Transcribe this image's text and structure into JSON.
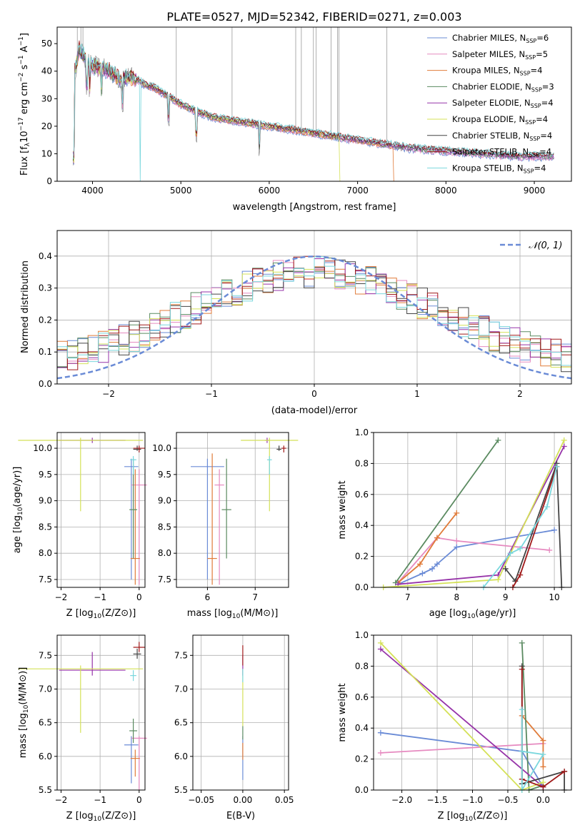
{
  "chart_data": [
    {
      "id": "spectrum",
      "type": "line",
      "title": "PLATE=0527, MJD=52342, FIBERID=0271, z=0.003",
      "xlabel": "wavelength [Angstrom, rest frame]",
      "ylabel_parts": [
        "Flux [f",
        "λ",
        "10",
        "−17",
        " erg cm",
        "−2",
        " s",
        "−1",
        " A",
        "−1",
        "]"
      ],
      "xlim": [
        3600,
        9420
      ],
      "ylim": [
        0,
        56
      ],
      "xticks": [
        4000,
        5000,
        6000,
        7000,
        8000,
        9000
      ],
      "yticks": [
        0,
        10,
        20,
        30,
        40,
        50
      ],
      "legend_position": "top-right",
      "continuum": [
        [
          3800,
          40
        ],
        [
          3850,
          48
        ],
        [
          3900,
          46
        ],
        [
          3950,
          43
        ],
        [
          4000,
          42
        ],
        [
          4100,
          41
        ],
        [
          4200,
          40
        ],
        [
          4300,
          37
        ],
        [
          4400,
          38
        ],
        [
          4500,
          37
        ],
        [
          4600,
          35
        ],
        [
          4700,
          34
        ],
        [
          4800,
          32
        ],
        [
          4900,
          30
        ],
        [
          5000,
          28
        ],
        [
          5200,
          25
        ],
        [
          5400,
          23
        ],
        [
          5600,
          22
        ],
        [
          5800,
          21
        ],
        [
          6000,
          20
        ],
        [
          6200,
          19
        ],
        [
          6400,
          18
        ],
        [
          6600,
          17
        ],
        [
          6800,
          16
        ],
        [
          7000,
          15
        ],
        [
          7200,
          14
        ],
        [
          7400,
          13
        ],
        [
          7600,
          12
        ],
        [
          7800,
          11.5
        ],
        [
          8000,
          11
        ],
        [
          8200,
          10.5
        ],
        [
          8400,
          10
        ],
        [
          8600,
          9.5
        ],
        [
          8800,
          9
        ],
        [
          9000,
          9
        ],
        [
          9200,
          9
        ]
      ],
      "series": [
        {
          "name": "Chabrier MILES",
          "nssp": "6",
          "color": "#6a8bd6"
        },
        {
          "name": "Salpeter MILES",
          "nssp": "5",
          "color": "#e68ac0"
        },
        {
          "name": "Kroupa MILES",
          "nssp": "4",
          "color": "#e07b39"
        },
        {
          "name": "Chabrier ELODIE",
          "nssp": "3",
          "color": "#5a8a60"
        },
        {
          "name": "Salpeter ELODIE",
          "nssp": "4",
          "color": "#9633a8"
        },
        {
          "name": "Kroupa ELODIE",
          "nssp": "4",
          "color": "#d4e157"
        },
        {
          "name": "Chabrier STELIB",
          "nssp": "4",
          "color": "#444444"
        },
        {
          "name": "Salpeter STELIB",
          "nssp": "4",
          "color": "#a01a1a"
        },
        {
          "name": "Kroupa STELIB",
          "nssp": "4",
          "color": "#7ad7dd"
        }
      ]
    },
    {
      "id": "residuals",
      "type": "line",
      "xlabel": "(data-model)/error",
      "ylabel": "Normed distribution",
      "xlim": [
        -2.5,
        2.5
      ],
      "ylim": [
        0,
        0.48
      ],
      "xticks": [
        -2,
        -1,
        0,
        1,
        2
      ],
      "xtick_labels": [
        "−2",
        "−1",
        "0",
        "1",
        "2"
      ],
      "yticks": [
        0.0,
        0.1,
        0.2,
        0.3,
        0.4
      ],
      "ytick_labels": [
        "0.0",
        "0.1",
        "0.2",
        "0.3",
        "0.4"
      ],
      "grid": true,
      "legend_label": "𝒩(0, 1)",
      "legend_position": "top-right",
      "gaussian": {
        "mean": 0,
        "sigma": 1,
        "color": "#6a8bd6"
      }
    },
    {
      "id": "age-vs-Z",
      "type": "scatter",
      "xlabel": "Z [log10(Z/Z⊙)]",
      "ylabel": "age  [log10(age/yr)]",
      "xlim": [
        -2.1,
        0.15
      ],
      "ylim": [
        7.35,
        10.3
      ],
      "xticks": [
        -2,
        -1,
        0
      ],
      "xtick_labels": [
        "−2",
        "−1",
        "0"
      ],
      "yticks": [
        7.5,
        8.0,
        8.5,
        9.0,
        9.5,
        10.0
      ],
      "ytick_labels": [
        "7.5",
        "8.0",
        "8.5",
        "9.0",
        "9.5",
        "10.0"
      ],
      "points": [
        {
          "x": -0.2,
          "y": 9.65,
          "xe": 0.18,
          "yl": 7.5,
          "yh": 9.8,
          "color": "#6a8bd6"
        },
        {
          "x": 0.0,
          "y": 9.3,
          "xe": 0.2,
          "yl": 7.4,
          "yh": 9.6,
          "color": "#e68ac0"
        },
        {
          "x": -0.1,
          "y": 7.9,
          "xe": 0.12,
          "yl": 7.4,
          "yh": 9.6,
          "color": "#e07b39"
        },
        {
          "x": -0.15,
          "y": 8.83,
          "xe": 0.1,
          "yl": 7.9,
          "yh": 9.8,
          "color": "#5a8a60"
        },
        {
          "x": -1.2,
          "y": 10.15,
          "xe": 0.85,
          "yl": 10.1,
          "yh": 10.2,
          "color": "#9633a8"
        },
        {
          "x": -1.5,
          "y": 10.15,
          "xe": 1.6,
          "yl": 8.8,
          "yh": 10.2,
          "color": "#d4e157"
        },
        {
          "x": -0.05,
          "y": 9.98,
          "xe": 0.1,
          "yl": 9.95,
          "yh": 10.05,
          "color": "#444444"
        },
        {
          "x": 0.0,
          "y": 10.0,
          "xe": 0.15,
          "yl": 9.92,
          "yh": 10.05,
          "color": "#a01a1a"
        },
        {
          "x": -0.15,
          "y": 9.78,
          "xe": 0.08,
          "yl": 9.5,
          "yh": 9.85,
          "color": "#7ad7dd"
        }
      ]
    },
    {
      "id": "age-vs-mass",
      "type": "scatter",
      "xlabel": "mass [log10(M/M⊙)]",
      "xlim": [
        5.35,
        7.7
      ],
      "ylim": [
        7.35,
        10.3
      ],
      "xticks": [
        6,
        7
      ],
      "xtick_labels": [
        "6",
        "7"
      ],
      "yticks": [
        7.5,
        8.0,
        8.5,
        9.0,
        9.5,
        10.0
      ],
      "ytick_labels": [
        "7.5",
        "8.0",
        "8.5",
        "9.0",
        "9.5",
        "10.0"
      ],
      "points": [
        {
          "x": 6.0,
          "y": 9.65,
          "xe": 0.35,
          "yl": 7.5,
          "yh": 9.8,
          "color": "#6a8bd6"
        },
        {
          "x": 6.25,
          "y": 9.3,
          "xe": 0.1,
          "yl": 7.4,
          "yh": 9.6,
          "color": "#e68ac0"
        },
        {
          "x": 6.1,
          "y": 7.9,
          "xe": 0.1,
          "yl": 7.4,
          "yh": 9.9,
          "color": "#e07b39"
        },
        {
          "x": 6.4,
          "y": 8.83,
          "xe": 0.1,
          "yl": 7.9,
          "yh": 9.8,
          "color": "#5a8a60"
        },
        {
          "x": 7.25,
          "y": 10.15,
          "xe": 0.05,
          "yl": 10.1,
          "yh": 10.2,
          "color": "#9633a8"
        },
        {
          "x": 7.3,
          "y": 10.15,
          "xe": 0.6,
          "yl": 8.8,
          "yh": 10.2,
          "color": "#d4e157"
        },
        {
          "x": 7.5,
          "y": 9.98,
          "xe": 0.05,
          "yl": 9.95,
          "yh": 10.05,
          "color": "#444444"
        },
        {
          "x": 7.6,
          "y": 10.0,
          "xe": 0.05,
          "yl": 9.92,
          "yh": 10.05,
          "color": "#a01a1a"
        },
        {
          "x": 7.3,
          "y": 9.78,
          "xe": 0.05,
          "yl": 9.5,
          "yh": 9.85,
          "color": "#7ad7dd"
        }
      ]
    },
    {
      "id": "weight-vs-age",
      "type": "line",
      "xlabel": "age  [log10(age/yr)]",
      "ylabel": "mass weight",
      "xlim": [
        6.3,
        10.35
      ],
      "ylim": [
        0,
        1.0
      ],
      "xticks": [
        7,
        8,
        9,
        10
      ],
      "xtick_labels": [
        "7",
        "8",
        "9",
        "10"
      ],
      "yticks": [
        0.0,
        0.2,
        0.4,
        0.6,
        0.8,
        1.0
      ],
      "ytick_labels": [
        "0.0",
        "0.2",
        "0.4",
        "0.6",
        "0.8",
        "1.0"
      ],
      "grid": true,
      "series": [
        {
          "color": "#6a8bd6",
          "points": [
            [
              6.8,
              0.02
            ],
            [
              7.3,
              0.09
            ],
            [
              7.5,
              0.12
            ],
            [
              7.6,
              0.15
            ],
            [
              8.0,
              0.26
            ],
            [
              10.0,
              0.37
            ]
          ]
        },
        {
          "color": "#e68ac0",
          "points": [
            [
              6.8,
              0.03
            ],
            [
              7.6,
              0.32
            ],
            [
              8.0,
              0.3
            ],
            [
              9.9,
              0.24
            ]
          ]
        },
        {
          "color": "#e07b39",
          "points": [
            [
              6.8,
              0.03
            ],
            [
              7.25,
              0.15
            ],
            [
              7.6,
              0.32
            ],
            [
              8.0,
              0.48
            ]
          ]
        },
        {
          "color": "#5a8a60",
          "points": [
            [
              6.75,
              0.03
            ],
            [
              8.85,
              0.95
            ]
          ]
        },
        {
          "color": "#9633a8",
          "points": [
            [
              6.8,
              0.02
            ],
            [
              8.85,
              0.08
            ],
            [
              10.2,
              0.91
            ]
          ]
        },
        {
          "color": "#d4e157",
          "points": [
            [
              6.5,
              0.0
            ],
            [
              8.85,
              0.05
            ],
            [
              10.2,
              0.95
            ]
          ]
        },
        {
          "color": "#444444",
          "points": [
            [
              9.0,
              0.12
            ],
            [
              9.2,
              0.04
            ],
            [
              10.05,
              0.8
            ],
            [
              10.15,
              0.0
            ]
          ]
        },
        {
          "color": "#a01a1a",
          "points": [
            [
              9.15,
              0.0
            ],
            [
              9.3,
              0.08
            ],
            [
              10.05,
              0.78
            ]
          ]
        },
        {
          "color": "#7ad7dd",
          "points": [
            [
              8.55,
              0.0
            ],
            [
              9.1,
              0.22
            ],
            [
              9.3,
              0.25
            ],
            [
              9.85,
              0.52
            ],
            [
              10.05,
              0.78
            ]
          ]
        }
      ]
    },
    {
      "id": "mass-vs-Z",
      "type": "scatter",
      "xlabel": "Z [log10(Z/Z⊙)]",
      "ylabel": "mass [log10(M/M⊙)]",
      "xlim": [
        -2.1,
        0.15
      ],
      "ylim": [
        5.5,
        7.8
      ],
      "xticks": [
        -2,
        -1,
        0
      ],
      "xtick_labels": [
        "−2",
        "−1",
        "0"
      ],
      "yticks": [
        5.5,
        6.0,
        6.5,
        7.0,
        7.5
      ],
      "ytick_labels": [
        "5.5",
        "6.0",
        "6.5",
        "7.0",
        "7.5"
      ],
      "points": [
        {
          "x": -0.2,
          "y": 6.17,
          "xe": 0.18,
          "yl": 5.6,
          "yh": 6.3,
          "color": "#6a8bd6"
        },
        {
          "x": 0.0,
          "y": 6.27,
          "xe": 0.2,
          "yl": 5.5,
          "yh": 6.3,
          "color": "#e68ac0"
        },
        {
          "x": -0.1,
          "y": 5.97,
          "xe": 0.12,
          "yl": 5.7,
          "yh": 6.1,
          "color": "#e07b39"
        },
        {
          "x": -0.15,
          "y": 6.38,
          "xe": 0.1,
          "yl": 6.2,
          "yh": 6.56,
          "color": "#5a8a60"
        },
        {
          "x": -1.2,
          "y": 7.28,
          "xe": 0.85,
          "yl": 7.2,
          "yh": 7.55,
          "color": "#9633a8"
        },
        {
          "x": -1.5,
          "y": 7.3,
          "xe": 1.6,
          "yl": 6.35,
          "yh": 7.35,
          "color": "#d4e157"
        },
        {
          "x": -0.05,
          "y": 7.52,
          "xe": 0.1,
          "yl": 7.45,
          "yh": 7.6,
          "color": "#444444"
        },
        {
          "x": 0.0,
          "y": 7.62,
          "xe": 0.15,
          "yl": 7.55,
          "yh": 7.7,
          "color": "#a01a1a"
        },
        {
          "x": -0.15,
          "y": 7.2,
          "xe": 0.08,
          "yl": 7.12,
          "yh": 7.28,
          "color": "#7ad7dd"
        }
      ]
    },
    {
      "id": "mass-vs-EBV",
      "type": "scatter",
      "xlabel": "E(B-V)",
      "xlim": [
        -0.06,
        0.055
      ],
      "ylim": [
        5.5,
        7.8
      ],
      "xticks": [
        -0.05,
        0.0,
        0.05
      ],
      "xtick_labels": [
        "−0.05",
        "0.00",
        "0.05"
      ],
      "yticks": [
        5.5,
        6.0,
        6.5,
        7.0,
        7.5
      ],
      "ytick_labels": [
        "5.5",
        "6.0",
        "6.5",
        "7.0",
        "7.5"
      ],
      "segments": [
        {
          "color": "#6a8bd6",
          "yl": 5.65,
          "yh": 6.3
        },
        {
          "color": "#e07b39",
          "yl": 5.95,
          "yh": 6.2
        },
        {
          "color": "#5a8a60",
          "yl": 6.25,
          "yh": 6.45
        },
        {
          "color": "#d4e157",
          "yl": 6.45,
          "yh": 7.3
        },
        {
          "color": "#9633a8",
          "yl": 7.2,
          "yh": 7.5
        },
        {
          "color": "#a01a1a",
          "yl": 7.35,
          "yh": 7.65
        },
        {
          "color": "#7ad7dd",
          "yl": 7.1,
          "yh": 7.3
        }
      ]
    },
    {
      "id": "weight-vs-Z",
      "type": "line",
      "xlabel": "Z [log10(Z/Z⊙)]",
      "ylabel": "mass weight",
      "xlim": [
        -2.4,
        0.4
      ],
      "ylim": [
        0,
        1.0
      ],
      "xticks": [
        -2.0,
        -1.5,
        -1.0,
        -0.5,
        0.0
      ],
      "xtick_labels": [
        "−2.0",
        "−1.5",
        "−1.0",
        "−0.5",
        "0.0"
      ],
      "yticks": [
        0.0,
        0.2,
        0.4,
        0.6,
        0.8,
        1.0
      ],
      "ytick_labels": [
        "0.0",
        "0.2",
        "0.4",
        "0.6",
        "0.8",
        "1.0"
      ],
      "grid": true,
      "series": [
        {
          "color": "#6a8bd6",
          "points": [
            [
              -2.3,
              0.37
            ],
            [
              -0.3,
              0.25
            ],
            [
              0.0,
              0.02
            ]
          ]
        },
        {
          "color": "#e68ac0",
          "points": [
            [
              -2.3,
              0.24
            ],
            [
              0.0,
              0.3
            ]
          ]
        },
        {
          "color": "#e07b39",
          "points": [
            [
              -0.3,
              0.48
            ],
            [
              0.0,
              0.32
            ],
            [
              0.0,
              0.15
            ]
          ]
        },
        {
          "color": "#5a8a60",
          "points": [
            [
              -0.3,
              0.95
            ],
            [
              -0.2,
              0.0
            ],
            [
              0.0,
              0.03
            ]
          ]
        },
        {
          "color": "#9633a8",
          "points": [
            [
              -2.3,
              0.91
            ],
            [
              0.0,
              0.02
            ]
          ]
        },
        {
          "color": "#d4e157",
          "points": [
            [
              -2.3,
              0.95
            ],
            [
              -0.3,
              0.0
            ],
            [
              0.0,
              0.05
            ]
          ]
        },
        {
          "color": "#444444",
          "points": [
            [
              -0.3,
              0.8
            ],
            [
              -0.3,
              0.04
            ],
            [
              0.3,
              0.12
            ],
            [
              0.3,
              0.0
            ]
          ]
        },
        {
          "color": "#a01a1a",
          "points": [
            [
              -0.3,
              0.78
            ],
            [
              -0.3,
              0.07
            ],
            [
              0.0,
              0.02
            ],
            [
              0.3,
              0.12
            ]
          ]
        },
        {
          "color": "#7ad7dd",
          "points": [
            [
              -0.3,
              0.52
            ],
            [
              -0.3,
              0.0
            ],
            [
              0.0,
              0.23
            ],
            [
              -0.3,
              0.25
            ]
          ]
        }
      ]
    }
  ]
}
